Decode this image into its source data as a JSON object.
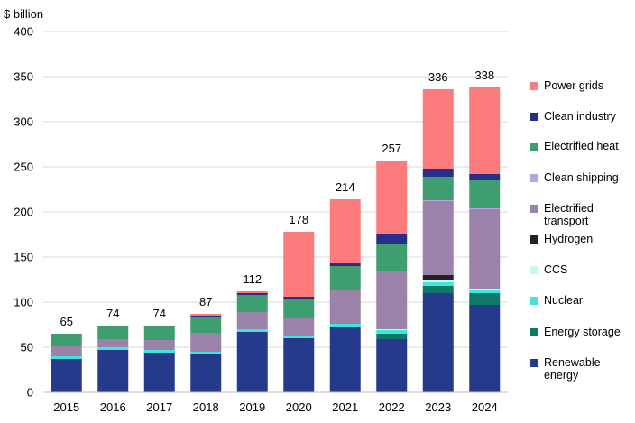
{
  "chart_data": {
    "type": "bar",
    "stacked": true,
    "ylabel": "$ billion",
    "ylim": [
      0,
      400
    ],
    "yticks": [
      0,
      50,
      100,
      150,
      200,
      250,
      300,
      350,
      400
    ],
    "grid": true,
    "legend_position": "right",
    "categories": [
      "2015",
      "2016",
      "2017",
      "2018",
      "2019",
      "2020",
      "2021",
      "2022",
      "2023",
      "2024"
    ],
    "totals": [
      65,
      74,
      74,
      87,
      112,
      178,
      214,
      257,
      336,
      338
    ],
    "series": [
      {
        "name": "Renewable energy",
        "color": "#263a8c",
        "values": [
          37,
          47,
          44,
          42,
          67,
          60,
          72,
          59,
          110,
          97
        ]
      },
      {
        "name": "Energy storage",
        "color": "#0e7a66",
        "values": [
          0,
          0,
          0,
          0,
          0,
          0,
          0,
          6,
          8,
          13
        ]
      },
      {
        "name": "Nuclear",
        "color": "#3ee6dc",
        "values": [
          3,
          3,
          3,
          3,
          3,
          3,
          4,
          4,
          4,
          3
        ]
      },
      {
        "name": "CCS",
        "color": "#cdf5f2",
        "values": [
          0,
          0,
          0,
          0,
          0,
          0,
          0,
          1,
          2,
          2
        ]
      },
      {
        "name": "Hydrogen",
        "color": "#222222",
        "values": [
          0,
          0,
          0,
          0,
          0,
          0,
          0,
          0,
          6,
          0
        ]
      },
      {
        "name": "Electrified transport",
        "color": "#9b82a8",
        "values": [
          11,
          9,
          11,
          21,
          19,
          19,
          38,
          64,
          82,
          88
        ]
      },
      {
        "name": "Clean shipping",
        "color": "#b3a3e6",
        "values": [
          0,
          0,
          0,
          0,
          0,
          0,
          0,
          0,
          1,
          1
        ]
      },
      {
        "name": "Electrified heat",
        "color": "#3e9e70",
        "values": [
          14,
          15,
          16,
          17,
          19,
          21,
          26,
          31,
          26,
          31
        ]
      },
      {
        "name": "Clean industry",
        "color": "#262e8a",
        "values": [
          0,
          0,
          0,
          2,
          2,
          3,
          3,
          10,
          9,
          7
        ]
      },
      {
        "name": "Power grids",
        "color": "#fe7b7d",
        "values": [
          0,
          0,
          0,
          2,
          2,
          72,
          71,
          82,
          88,
          96
        ]
      }
    ],
    "legend": [
      {
        "label": "Power grids",
        "color": "#fe7b7d"
      },
      {
        "label": "Clean industry",
        "color": "#262e8a"
      },
      {
        "label": "Electrified heat",
        "color": "#3e9e70"
      },
      {
        "label": "Clean shipping",
        "color": "#b3a3e6"
      },
      {
        "label": "Electrified transport",
        "color": "#9b82a8"
      },
      {
        "label": "Hydrogen",
        "color": "#222222"
      },
      {
        "label": "CCS",
        "color": "#cdf5f2"
      },
      {
        "label": "Nuclear",
        "color": "#3ee6dc"
      },
      {
        "label": "Energy storage",
        "color": "#0e7a66"
      },
      {
        "label": "Renewable energy",
        "color": "#263a8c"
      }
    ]
  }
}
